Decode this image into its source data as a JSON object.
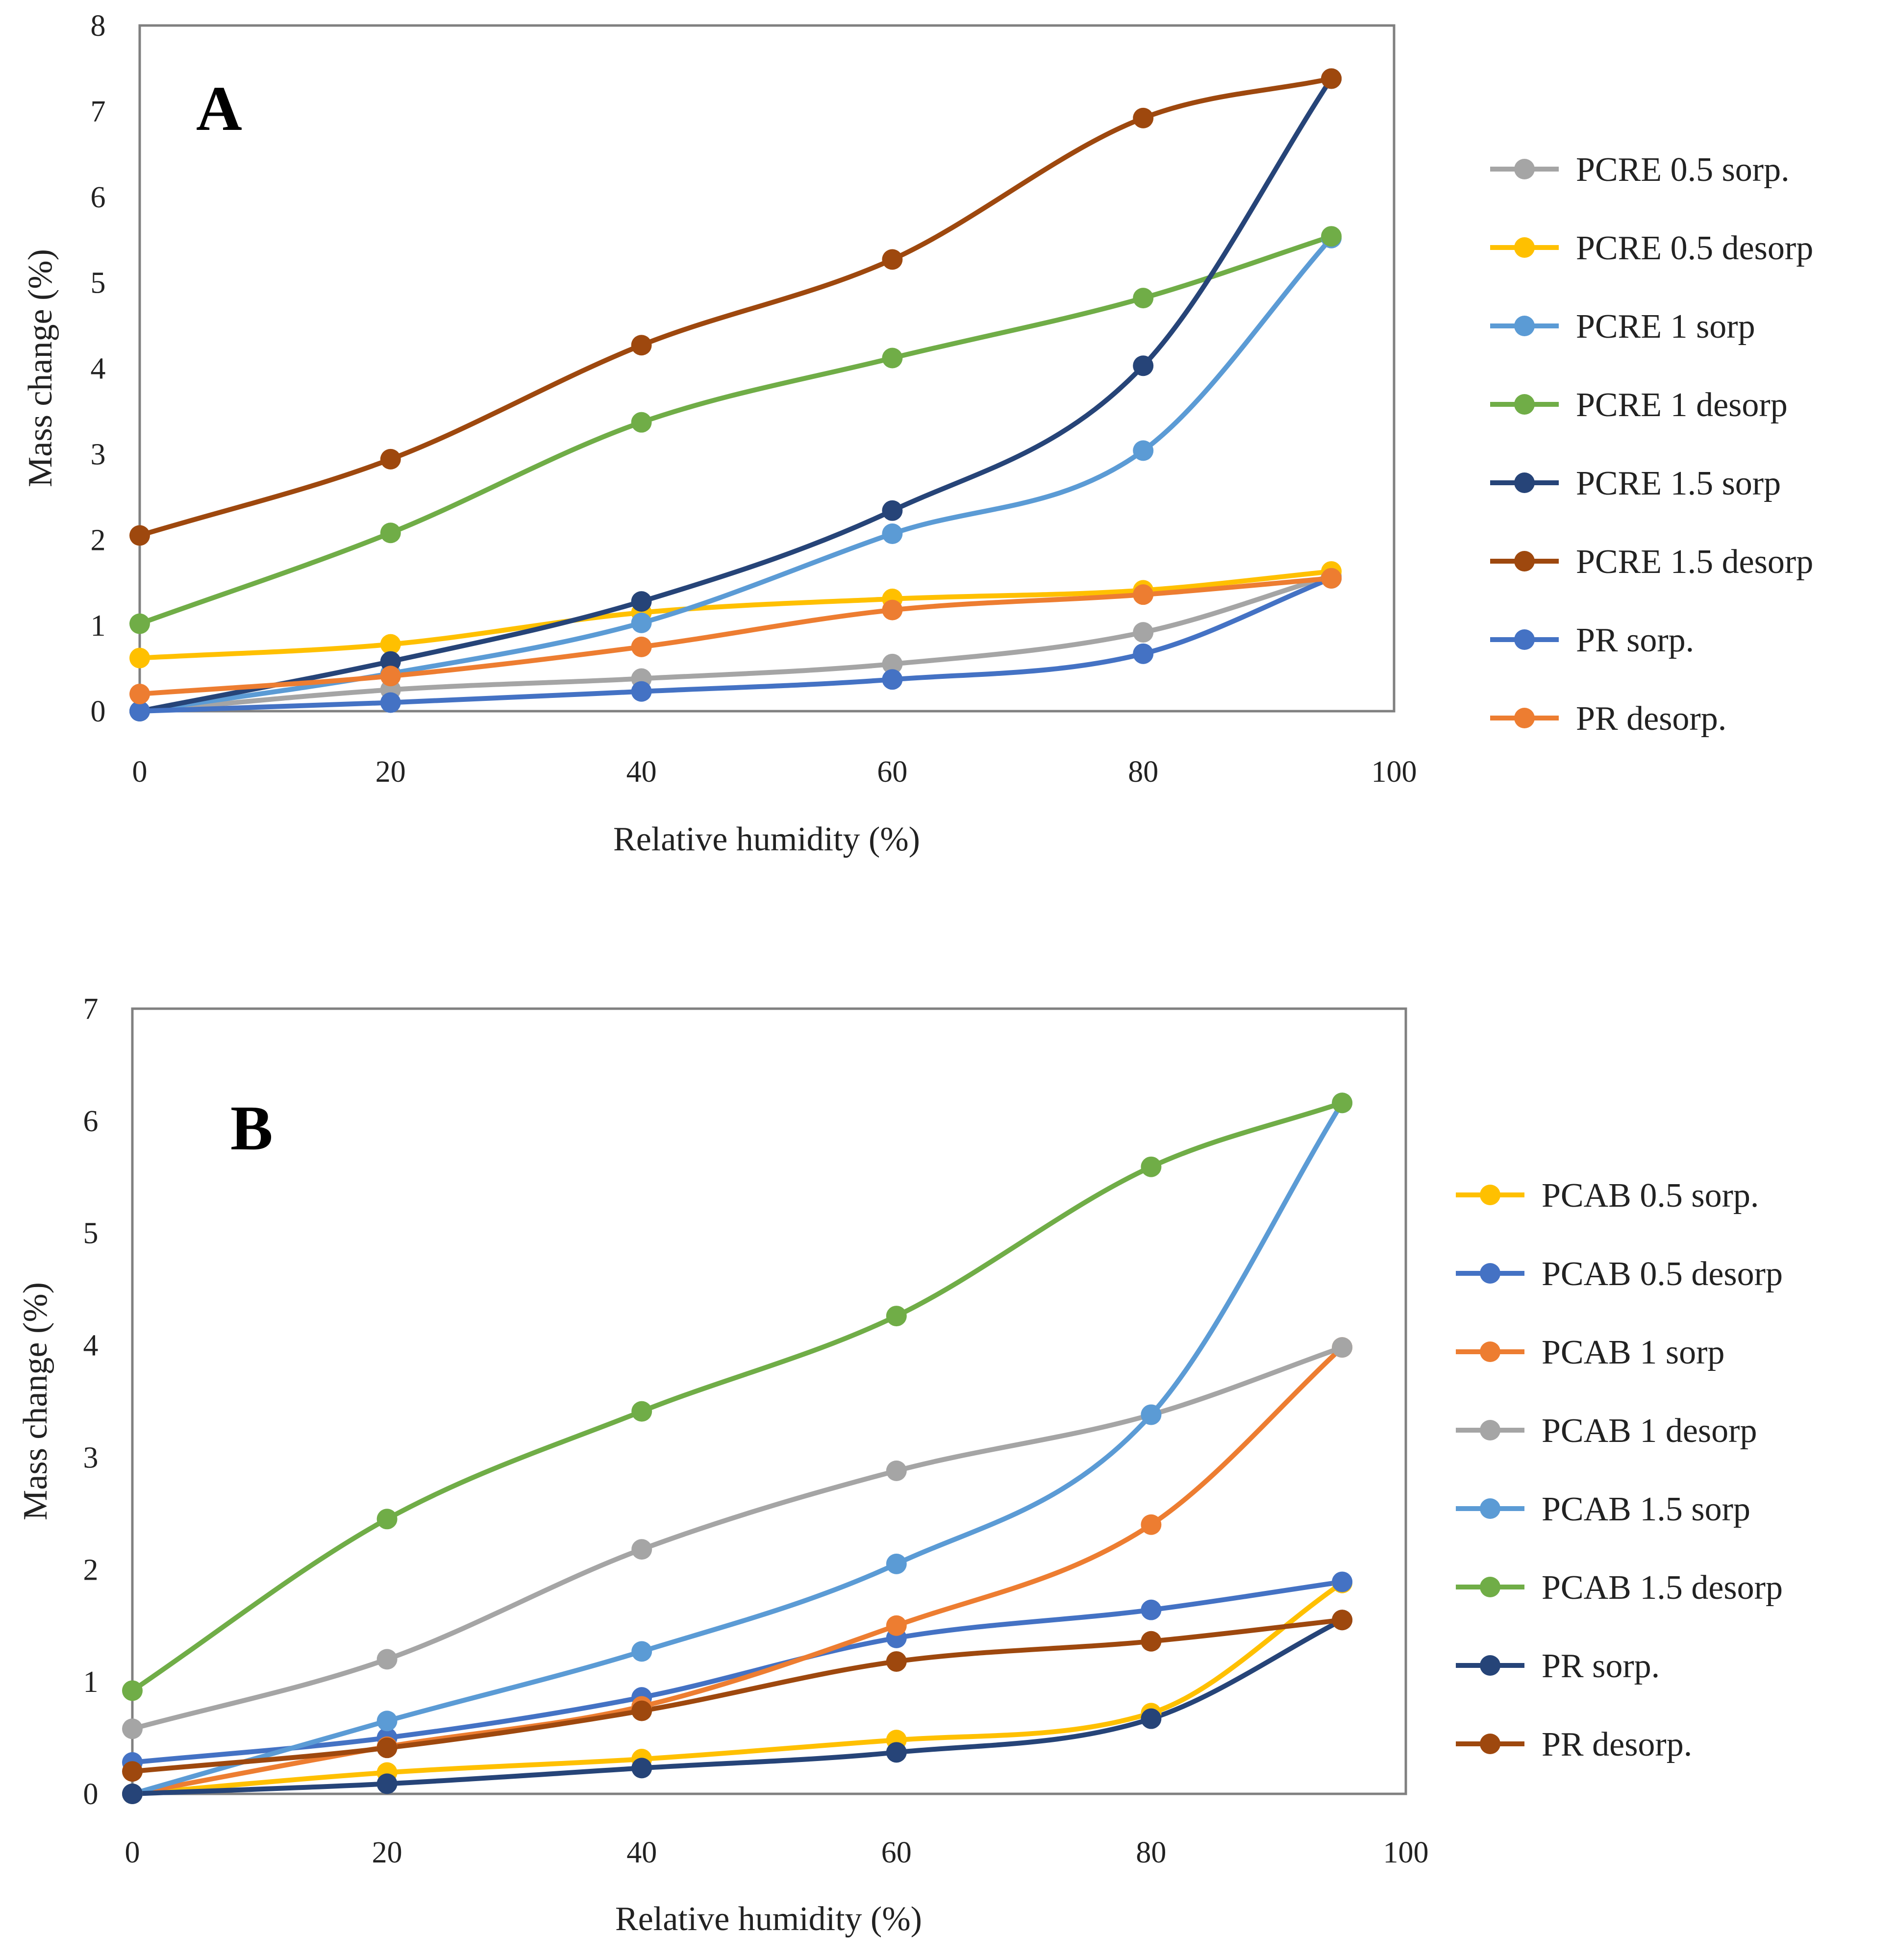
{
  "chart_data": [
    {
      "type": "line",
      "panel_label": "A",
      "xlabel": "Relative humidity (%)",
      "ylabel": "Mass change (%)",
      "xlim": [
        0,
        100
      ],
      "ylim": [
        0,
        8
      ],
      "xticks": [
        "0",
        "20",
        "40",
        "60",
        "80",
        "100"
      ],
      "yticks": [
        "0",
        "1",
        "2",
        "3",
        "4",
        "5",
        "6",
        "7",
        "8"
      ],
      "grid": false,
      "legend_position": "right",
      "x": [
        0,
        20,
        40,
        60,
        80,
        95
      ],
      "series": [
        {
          "name": "PCRE 0.5 sorp.",
          "color": "#a5a5a5",
          "values": [
            0.0,
            0.25,
            0.38,
            0.55,
            0.92,
            1.58
          ]
        },
        {
          "name": "PCRE 0.5 desorp",
          "color": "#ffc000",
          "values": [
            0.62,
            0.78,
            1.15,
            1.31,
            1.41,
            1.63
          ]
        },
        {
          "name": "PCRE 1 sorp",
          "color": "#5b9bd5",
          "values": [
            0.0,
            0.44,
            1.03,
            2.07,
            3.04,
            5.52
          ]
        },
        {
          "name": "PCRE 1 desorp",
          "color": "#70ad47",
          "values": [
            1.02,
            2.08,
            3.37,
            4.12,
            4.82,
            5.54
          ]
        },
        {
          "name": "PCRE 1.5 sorp",
          "color": "#264478",
          "values": [
            0.0,
            0.58,
            1.28,
            2.34,
            4.03,
            7.38
          ]
        },
        {
          "name": "PCRE 1.5 desorp",
          "color": "#9e480e",
          "values": [
            2.05,
            2.94,
            4.27,
            5.27,
            6.92,
            7.38
          ]
        },
        {
          "name": "PR sorp.",
          "color": "#4472c4",
          "values": [
            0.0,
            0.1,
            0.23,
            0.37,
            0.67,
            1.55
          ]
        },
        {
          "name": "PR desorp.",
          "color": "#ed7d31",
          "values": [
            0.2,
            0.41,
            0.75,
            1.18,
            1.36,
            1.55
          ]
        }
      ]
    },
    {
      "type": "line",
      "panel_label": "B",
      "xlabel": "Relative humidity (%)",
      "ylabel": "Mass change (%)",
      "xlim": [
        0,
        100
      ],
      "ylim": [
        0,
        7
      ],
      "xticks": [
        "0",
        "20",
        "40",
        "60",
        "80",
        "100"
      ],
      "yticks": [
        "0",
        "1",
        "2",
        "3",
        "4",
        "5",
        "6",
        "7"
      ],
      "grid": false,
      "legend_position": "right",
      "x": [
        0,
        20,
        40,
        60,
        80,
        95
      ],
      "series": [
        {
          "name": "PCAB 0.5 sorp.",
          "color": "#ffc000",
          "values": [
            0.0,
            0.19,
            0.31,
            0.48,
            0.72,
            1.88
          ]
        },
        {
          "name": "PCAB 0.5 desorp",
          "color": "#4472c4",
          "values": [
            0.28,
            0.5,
            0.86,
            1.39,
            1.64,
            1.89
          ]
        },
        {
          "name": "PCAB 1 sorp",
          "color": "#ed7d31",
          "values": [
            0.0,
            0.42,
            0.78,
            1.5,
            2.4,
            3.98
          ]
        },
        {
          "name": "PCAB 1 desorp",
          "color": "#a5a5a5",
          "values": [
            0.58,
            1.2,
            2.18,
            2.88,
            3.38,
            3.98
          ]
        },
        {
          "name": "PCAB 1.5 sorp",
          "color": "#5b9bd5",
          "values": [
            0.0,
            0.65,
            1.27,
            2.05,
            3.38,
            6.16
          ]
        },
        {
          "name": "PCAB 1.5 desorp",
          "color": "#70ad47",
          "values": [
            0.92,
            2.45,
            3.41,
            4.26,
            5.59,
            6.16
          ]
        },
        {
          "name": "PR sorp.",
          "color": "#264478",
          "values": [
            0.0,
            0.09,
            0.23,
            0.37,
            0.67,
            1.55
          ]
        },
        {
          "name": "PR desorp.",
          "color": "#9e480e",
          "values": [
            0.2,
            0.41,
            0.74,
            1.18,
            1.36,
            1.55
          ]
        }
      ]
    }
  ]
}
